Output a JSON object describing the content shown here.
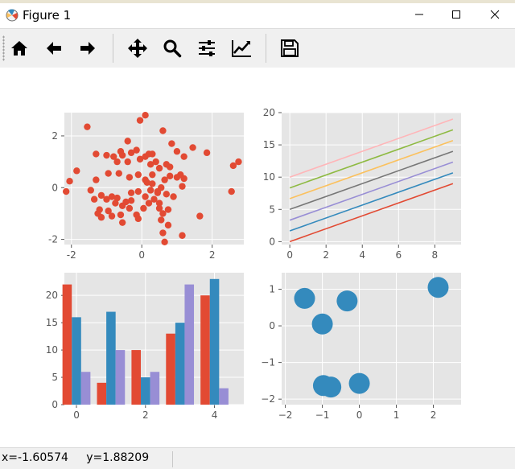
{
  "window": {
    "title": "Figure 1"
  },
  "toolbar": {
    "buttons": [
      {
        "id": "home",
        "icon": "home-icon"
      },
      {
        "id": "back",
        "icon": "arrow-left-icon"
      },
      {
        "id": "forward",
        "icon": "arrow-right-icon"
      },
      {
        "id": "pan",
        "icon": "move-icon"
      },
      {
        "id": "zoom",
        "icon": "magnifier-icon"
      },
      {
        "id": "subplots",
        "icon": "sliders-icon"
      },
      {
        "id": "edit",
        "icon": "line-chart-icon"
      },
      {
        "id": "save",
        "icon": "floppy-disk-icon"
      }
    ]
  },
  "status": {
    "coords": "x=-1.60574     y=1.88209"
  },
  "colors": {
    "axes_bg": "#e5e5e5",
    "grid": "#ffffff",
    "tick_text": "#555555",
    "red": "#e24a33",
    "blue": "#348abd",
    "purple": "#988ed5",
    "gray": "#777777",
    "yellow": "#fbc15e",
    "green": "#8eba42",
    "pink": "#ffb5b8"
  },
  "chart_data": [
    {
      "type": "scatter",
      "xlim": [
        -2.2,
        2.9
      ],
      "ylim": [
        -2.2,
        2.9
      ],
      "xticks": [
        "-2",
        "0",
        "2"
      ],
      "yticks": [
        "-2",
        "0",
        "2"
      ],
      "grid": true,
      "color": "#e24a33",
      "points": [
        [
          0.1,
          2.8
        ],
        [
          -0.05,
          2.6
        ],
        [
          0.6,
          2.2
        ],
        [
          -1.55,
          2.35
        ],
        [
          -0.4,
          1.8
        ],
        [
          -0.6,
          1.4
        ],
        [
          -0.15,
          1.45
        ],
        [
          0.1,
          1.2
        ],
        [
          0.2,
          1.3
        ],
        [
          0.3,
          1.3
        ],
        [
          0.85,
          1.7
        ],
        [
          1.0,
          1.4
        ],
        [
          1.45,
          1.55
        ],
        [
          1.85,
          1.35
        ],
        [
          -1.3,
          1.3
        ],
        [
          -1.0,
          1.25
        ],
        [
          -0.8,
          1.2
        ],
        [
          -0.55,
          1.25
        ],
        [
          -0.3,
          1.35
        ],
        [
          -0.05,
          1.1
        ],
        [
          0.4,
          1.0
        ],
        [
          0.7,
          0.9
        ],
        [
          0.8,
          0.8
        ],
        [
          1.2,
          1.2
        ],
        [
          -0.4,
          1.0
        ],
        [
          -0.7,
          1.0
        ],
        [
          0.25,
          0.9
        ],
        [
          0.5,
          0.75
        ],
        [
          1.1,
          0.5
        ],
        [
          1.2,
          0.35
        ],
        [
          0.8,
          0.45
        ],
        [
          1.0,
          0.4
        ],
        [
          0.65,
          0.3
        ],
        [
          0.3,
          0.5
        ],
        [
          0.1,
          0.3
        ],
        [
          -0.1,
          0.5
        ],
        [
          -0.35,
          0.4
        ],
        [
          -0.65,
          0.55
        ],
        [
          -0.95,
          0.55
        ],
        [
          -1.85,
          0.65
        ],
        [
          -2.05,
          0.25
        ],
        [
          -2.15,
          -0.15
        ],
        [
          -1.3,
          0.3
        ],
        [
          -1.45,
          -0.1
        ],
        [
          -1.15,
          -0.3
        ],
        [
          -1.0,
          -0.45
        ],
        [
          -0.85,
          -0.35
        ],
        [
          -0.7,
          -0.4
        ],
        [
          -0.3,
          -0.2
        ],
        [
          -0.1,
          -0.15
        ],
        [
          0.1,
          -0.35
        ],
        [
          0.25,
          -0.1
        ],
        [
          0.45,
          -0.2
        ],
        [
          0.55,
          0.0
        ],
        [
          0.7,
          -0.25
        ],
        [
          0.9,
          -0.35
        ],
        [
          1.15,
          0.05
        ],
        [
          0.15,
          0.2
        ],
        [
          0.3,
          0.15
        ],
        [
          -0.3,
          -0.5
        ],
        [
          -0.45,
          -0.55
        ],
        [
          -0.55,
          -0.7
        ],
        [
          -0.75,
          -0.6
        ],
        [
          -0.95,
          -0.9
        ],
        [
          -1.2,
          -0.85
        ],
        [
          -1.35,
          -0.45
        ],
        [
          -1.25,
          -1.0
        ],
        [
          -1.15,
          -1.15
        ],
        [
          -0.85,
          -1.1
        ],
        [
          -0.6,
          -1.05
        ],
        [
          -0.55,
          -1.35
        ],
        [
          -0.1,
          -1.2
        ],
        [
          -0.15,
          -1.05
        ],
        [
          0.05,
          -0.8
        ],
        [
          0.2,
          -0.6
        ],
        [
          0.5,
          -0.6
        ],
        [
          0.5,
          -0.8
        ],
        [
          0.6,
          -1.0
        ],
        [
          0.55,
          -1.25
        ],
        [
          0.75,
          -0.85
        ],
        [
          0.75,
          -1.45
        ],
        [
          0.6,
          -1.75
        ],
        [
          0.65,
          -2.1
        ],
        [
          1.15,
          -1.85
        ],
        [
          1.65,
          -1.1
        ],
        [
          -0.35,
          -0.8
        ],
        [
          0.35,
          -0.45
        ],
        [
          2.55,
          -0.15
        ],
        [
          2.6,
          0.85
        ],
        [
          2.75,
          1.0
        ],
        [
          0.45,
          -0.15
        ]
      ]
    },
    {
      "type": "line",
      "xlim": [
        -0.45,
        9.45
      ],
      "ylim": [
        -0.45,
        20
      ],
      "xticks": [
        "0",
        "2",
        "4",
        "6",
        "8"
      ],
      "yticks": [
        "0",
        "5",
        "10",
        "15",
        "20"
      ],
      "grid": true,
      "x": [
        0,
        9
      ],
      "series": [
        {
          "values": [
            0.0,
            9.0
          ],
          "color": "#e24a33"
        },
        {
          "values": [
            1.67,
            10.67
          ],
          "color": "#348abd"
        },
        {
          "values": [
            3.33,
            12.33
          ],
          "color": "#988ed5"
        },
        {
          "values": [
            5.0,
            14.0
          ],
          "color": "#777777"
        },
        {
          "values": [
            6.67,
            15.67
          ],
          "color": "#fbc15e"
        },
        {
          "values": [
            8.33,
            17.33
          ],
          "color": "#8eba42"
        },
        {
          "values": [
            10.0,
            19.0
          ],
          "color": "#ffb5b8"
        }
      ]
    },
    {
      "type": "bar",
      "xlim": [
        -0.35,
        4.85
      ],
      "ylim": [
        0,
        24.15
      ],
      "xticks": [
        "0",
        "2",
        "4"
      ],
      "yticks": [
        "0",
        "5",
        "10",
        "15",
        "20"
      ],
      "grid": true,
      "categories": [
        0,
        1,
        2,
        3,
        4
      ],
      "series": [
        {
          "values": [
            22,
            4,
            10,
            13,
            20
          ],
          "color": "#e24a33"
        },
        {
          "values": [
            16,
            17,
            5,
            15,
            23
          ],
          "color": "#348abd"
        },
        {
          "values": [
            6,
            10,
            6,
            22,
            3
          ],
          "color": "#988ed5"
        }
      ]
    },
    {
      "type": "scatter",
      "xlim": [
        -2.1,
        2.75
      ],
      "ylim": [
        -2.15,
        1.45
      ],
      "xticks": [
        "−2",
        "−1",
        "0",
        "1",
        "2"
      ],
      "yticks": [
        "−2",
        "−1",
        "0",
        "1"
      ],
      "grid": true,
      "color": "#348abd",
      "points": [
        [
          -1.48,
          0.75
        ],
        [
          -0.33,
          0.68
        ],
        [
          -1.0,
          0.05
        ],
        [
          2.13,
          1.05
        ],
        [
          -0.97,
          -1.63
        ],
        [
          -0.77,
          -1.67
        ],
        [
          0.0,
          -1.57
        ]
      ]
    }
  ]
}
